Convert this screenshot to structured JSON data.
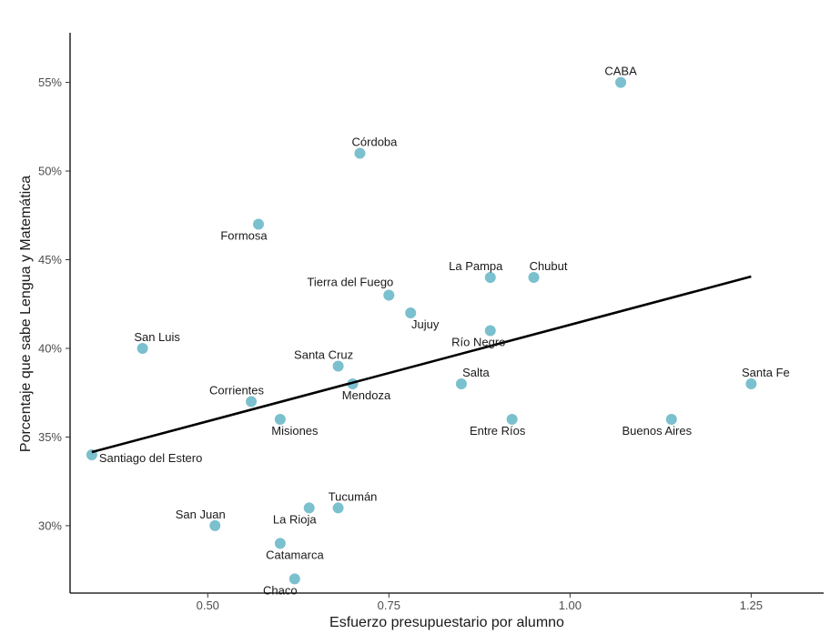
{
  "chart_data": {
    "type": "scatter",
    "xlabel": "Esfuerzo presupuestario por alumno",
    "ylabel": "Porcentaje que sabe Lengua y Matemática",
    "xlim": [
      0.31,
      1.35
    ],
    "ylim": [
      0.262,
      0.578
    ],
    "x_ticks": [
      0.5,
      0.75,
      1.0,
      1.25
    ],
    "x_tick_labels": [
      "0.50",
      "0.75",
      "1.00",
      "1.25"
    ],
    "y_ticks": [
      0.3,
      0.35,
      0.4,
      0.45,
      0.5,
      0.55
    ],
    "y_tick_labels": [
      "30%",
      "35%",
      "40%",
      "45%",
      "50%",
      "55%"
    ],
    "grid": false,
    "point_color": "#7bc0ce",
    "line_color": "#000000",
    "points": [
      {
        "label": "CABA",
        "x": 1.07,
        "y": 0.55,
        "label_pos": "above"
      },
      {
        "label": "Córdoba",
        "x": 0.71,
        "y": 0.51,
        "label_pos": "above"
      },
      {
        "label": "Formosa",
        "x": 0.57,
        "y": 0.47,
        "label_pos": "below"
      },
      {
        "label": "La Pampa",
        "x": 0.89,
        "y": 0.44,
        "label_pos": "above-left"
      },
      {
        "label": "Chubut",
        "x": 0.95,
        "y": 0.44,
        "label_pos": "above-right"
      },
      {
        "label": "Tierra del Fuego",
        "x": 0.75,
        "y": 0.43,
        "label_pos": "above-left"
      },
      {
        "label": "Jujuy",
        "x": 0.78,
        "y": 0.42,
        "label_pos": "below-right"
      },
      {
        "label": "Río Negro",
        "x": 0.89,
        "y": 0.41,
        "label_pos": "below-left"
      },
      {
        "label": "San Luis",
        "x": 0.41,
        "y": 0.4,
        "label_pos": "above-right"
      },
      {
        "label": "Santa Cruz",
        "x": 0.68,
        "y": 0.39,
        "label_pos": "above-left"
      },
      {
        "label": "Mendoza",
        "x": 0.7,
        "y": 0.38,
        "label_pos": "below-right"
      },
      {
        "label": "Salta",
        "x": 0.85,
        "y": 0.38,
        "label_pos": "above-right"
      },
      {
        "label": "Santa Fe",
        "x": 1.25,
        "y": 0.38,
        "label_pos": "above-right"
      },
      {
        "label": "Corrientes",
        "x": 0.56,
        "y": 0.37,
        "label_pos": "above-left"
      },
      {
        "label": "Misiones",
        "x": 0.6,
        "y": 0.36,
        "label_pos": "below-right"
      },
      {
        "label": "Entre Ríos",
        "x": 0.92,
        "y": 0.36,
        "label_pos": "below-left"
      },
      {
        "label": "Buenos Aires",
        "x": 1.14,
        "y": 0.36,
        "label_pos": "below-left"
      },
      {
        "label": "Santiago del Estero",
        "x": 0.34,
        "y": 0.34,
        "label_pos": "below-right"
      },
      {
        "label": "Tucumán",
        "x": 0.68,
        "y": 0.31,
        "label_pos": "above-right"
      },
      {
        "label": "La Rioja",
        "x": 0.64,
        "y": 0.31,
        "label_pos": "below-left"
      },
      {
        "label": "San Juan",
        "x": 0.51,
        "y": 0.3,
        "label_pos": "above-left"
      },
      {
        "label": "Catamarca",
        "x": 0.6,
        "y": 0.29,
        "label_pos": "below-right"
      },
      {
        "label": "Chaco",
        "x": 0.62,
        "y": 0.27,
        "label_pos": "below-left"
      }
    ],
    "trend_line": {
      "x": [
        0.34,
        1.25
      ],
      "y": [
        0.3415,
        0.4405
      ]
    }
  }
}
